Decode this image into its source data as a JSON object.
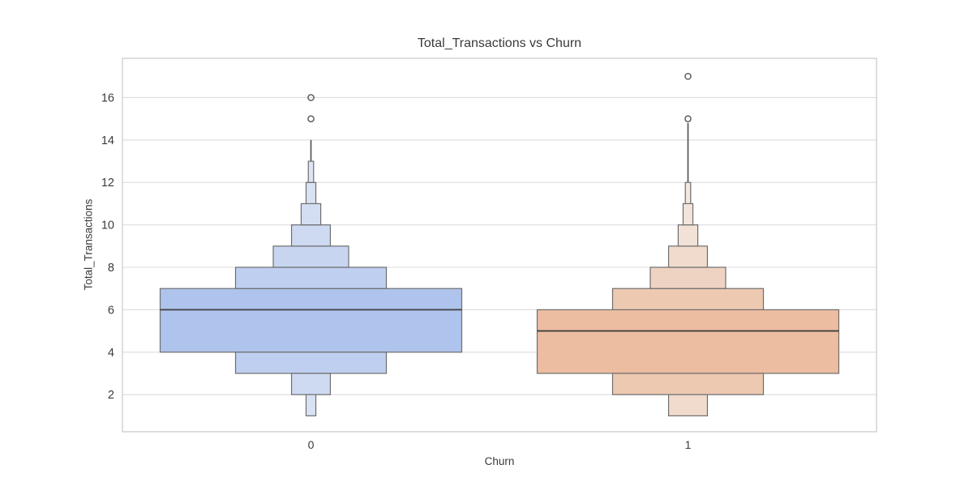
{
  "chart_data": {
    "type": "boxen",
    "title": "Total_Transactions vs Churn",
    "xlabel": "Churn",
    "ylabel": "Total_Transactions",
    "categories": [
      "0",
      "1"
    ],
    "y_ticks": [
      2,
      4,
      6,
      8,
      10,
      12,
      14,
      16
    ],
    "ylim": [
      0.25,
      17.85
    ],
    "xlim": [
      -0.5,
      1.5
    ],
    "grid": true,
    "legend": "none",
    "colors": {
      "grid": "#dcdcdc",
      "spine": "#cccccc",
      "edge": "#6e6e6e",
      "median": "#3f3f3f",
      "line": "#565656",
      "text": "#3b3b3b",
      "background": "#ffffff",
      "blue_base": "#afc4ec",
      "orange_base": "#ecbda0"
    },
    "series": [
      {
        "name": "Churn = 0",
        "median": 6,
        "quartiles": [
          4,
          7
        ],
        "whisker": [
          13,
          14
        ],
        "outliers": [
          15,
          16
        ],
        "shades": [
          "#afc4ec",
          "#bfcff0",
          "#c7d5f1",
          "#cedaf2",
          "#d4def3",
          "#d9e2f4",
          "#dde5f5"
        ],
        "boxes": [
          {
            "lo": 4,
            "hi": 7,
            "w": 0.8,
            "shade": 0
          },
          {
            "lo": 7,
            "hi": 8,
            "w": 0.4,
            "shade": 1
          },
          {
            "lo": 3,
            "hi": 4,
            "w": 0.4,
            "shade": 1
          },
          {
            "lo": 8,
            "hi": 9,
            "w": 0.2,
            "shade": 2
          },
          {
            "lo": 9,
            "hi": 10,
            "w": 0.103,
            "shade": 3
          },
          {
            "lo": 2,
            "hi": 3,
            "w": 0.103,
            "shade": 3
          },
          {
            "lo": 10,
            "hi": 11,
            "w": 0.052,
            "shade": 4
          },
          {
            "lo": 11,
            "hi": 12,
            "w": 0.026,
            "shade": 5
          },
          {
            "lo": 1,
            "hi": 2,
            "w": 0.026,
            "shade": 5
          },
          {
            "lo": 12,
            "hi": 13,
            "w": 0.014,
            "shade": 6
          }
        ]
      },
      {
        "name": "Churn = 1",
        "median": 5,
        "quartiles": [
          3,
          6
        ],
        "whisker": [
          12,
          14.8
        ],
        "outliers": [
          15,
          17
        ],
        "shades": [
          "#ecbda0",
          "#edc9b2",
          "#efd3c2",
          "#f0dbcd",
          "#f2e1d6",
          "#f3e5dc",
          "#f4e8e1"
        ],
        "boxes": [
          {
            "lo": 3,
            "hi": 6,
            "w": 0.8,
            "shade": 0
          },
          {
            "lo": 6,
            "hi": 7,
            "w": 0.4,
            "shade": 1
          },
          {
            "lo": 2,
            "hi": 3,
            "w": 0.4,
            "shade": 1
          },
          {
            "lo": 7,
            "hi": 8,
            "w": 0.2,
            "shade": 2
          },
          {
            "lo": 8,
            "hi": 9,
            "w": 0.103,
            "shade": 3
          },
          {
            "lo": 1,
            "hi": 2,
            "w": 0.103,
            "shade": 3
          },
          {
            "lo": 9,
            "hi": 10,
            "w": 0.052,
            "shade": 4
          },
          {
            "lo": 10,
            "hi": 11,
            "w": 0.026,
            "shade": 5
          },
          {
            "lo": 11,
            "hi": 12,
            "w": 0.014,
            "shade": 6
          }
        ]
      }
    ]
  }
}
